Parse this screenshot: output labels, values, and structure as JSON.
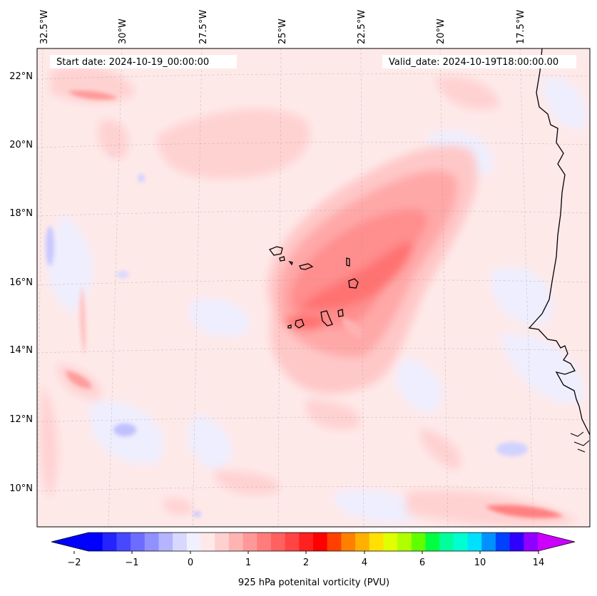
{
  "map": {
    "start_label": "Start date: 2024-10-19_00:00:00",
    "valid_label": "Valid_date: 2024-10-19T18:00:00.00",
    "lon_labels": [
      "32.5°W",
      "30°W",
      "27.5°W",
      "25°W",
      "22.5°W",
      "20°W",
      "17.5°W"
    ],
    "lat_labels": [
      "22°N",
      "20°N",
      "18°N",
      "16°N",
      "14°N",
      "12°N",
      "10°N"
    ],
    "coastline_color": "#000000",
    "background_color": "#fee9e9"
  },
  "colorbar": {
    "label": "925 hPa potenital vorticity (PVU)",
    "ticks": [
      "−2",
      "−1",
      "0",
      "1",
      "2",
      "4",
      "6",
      "10",
      "14"
    ],
    "colors": [
      "#0000ff",
      "#2424ff",
      "#4848ff",
      "#6c6cff",
      "#9090ff",
      "#b4b4ff",
      "#d8d8ff",
      "#f0f0ff",
      "#ffe8e8",
      "#ffd0d0",
      "#ffb4b4",
      "#ff9898",
      "#ff7c7c",
      "#ff6060",
      "#ff4444",
      "#ff2020",
      "#ff0000",
      "#ff4000",
      "#ff8000",
      "#ffb000",
      "#ffe000",
      "#e0ff00",
      "#b0ff00",
      "#60ff00",
      "#00ff40",
      "#00ff9c",
      "#00ffd0",
      "#00e0ff",
      "#0090ff",
      "#0040ff",
      "#3000ff",
      "#9000ff"
    ],
    "under_color": "#0000ff",
    "over_color": "#cc00ff"
  }
}
